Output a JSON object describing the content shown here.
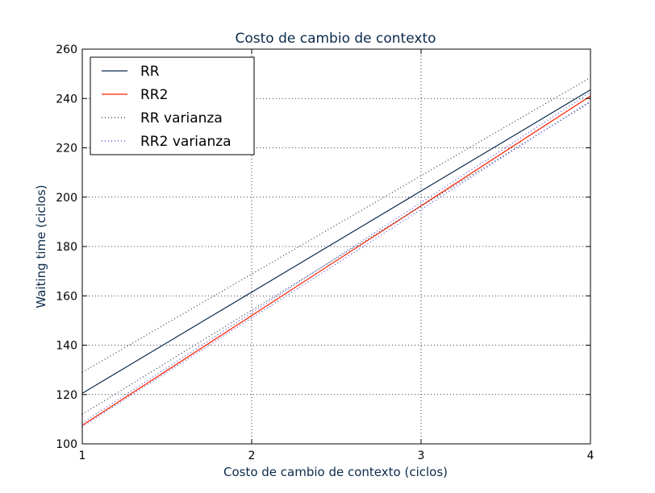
{
  "chart_data": {
    "type": "line",
    "title": "Costo de cambio de contexto",
    "xlabel": "Costo de cambio de contexto (ciclos)",
    "ylabel": "Waiting time (ciclos)",
    "xlim": [
      1,
      4
    ],
    "ylim": [
      100,
      260
    ],
    "xticks": [
      1,
      2,
      3,
      4
    ],
    "yticks": [
      100,
      120,
      140,
      160,
      180,
      200,
      220,
      240,
      260
    ],
    "grid": true,
    "legend_position": "top-left",
    "x": [
      1,
      4
    ],
    "series": [
      {
        "name": "RR",
        "values": [
          120.5,
          243.5
        ],
        "color": "#0b2a4a",
        "style": "solid"
      },
      {
        "name": "RR2",
        "values": [
          107.5,
          241.0
        ],
        "color": "#ff2000",
        "style": "solid"
      },
      {
        "name": "RR varianza",
        "values": [
          129.0,
          248.5
        ],
        "color": "#0b2a4a",
        "style": "dotted"
      },
      {
        "name": "RR varianza",
        "values": [
          112.0,
          238.5
        ],
        "color": "#0b2a4a",
        "style": "dotted"
      },
      {
        "name": "RR2 varianza",
        "values": [
          108.5,
          242.5
        ],
        "color": "#3a3acc",
        "style": "dotted"
      },
      {
        "name": "RR2 varianza",
        "values": [
          107.0,
          239.0
        ],
        "color": "#3a3acc",
        "style": "dotted"
      }
    ],
    "legend": [
      {
        "label": "RR",
        "color": "#0b2a4a",
        "style": "solid"
      },
      {
        "label": "RR2",
        "color": "#ff2000",
        "style": "solid"
      },
      {
        "label": "RR varianza",
        "color": "#0b2a4a",
        "style": "dotted"
      },
      {
        "label": "RR2 varianza",
        "color": "#3a3acc",
        "style": "dotted"
      }
    ]
  }
}
